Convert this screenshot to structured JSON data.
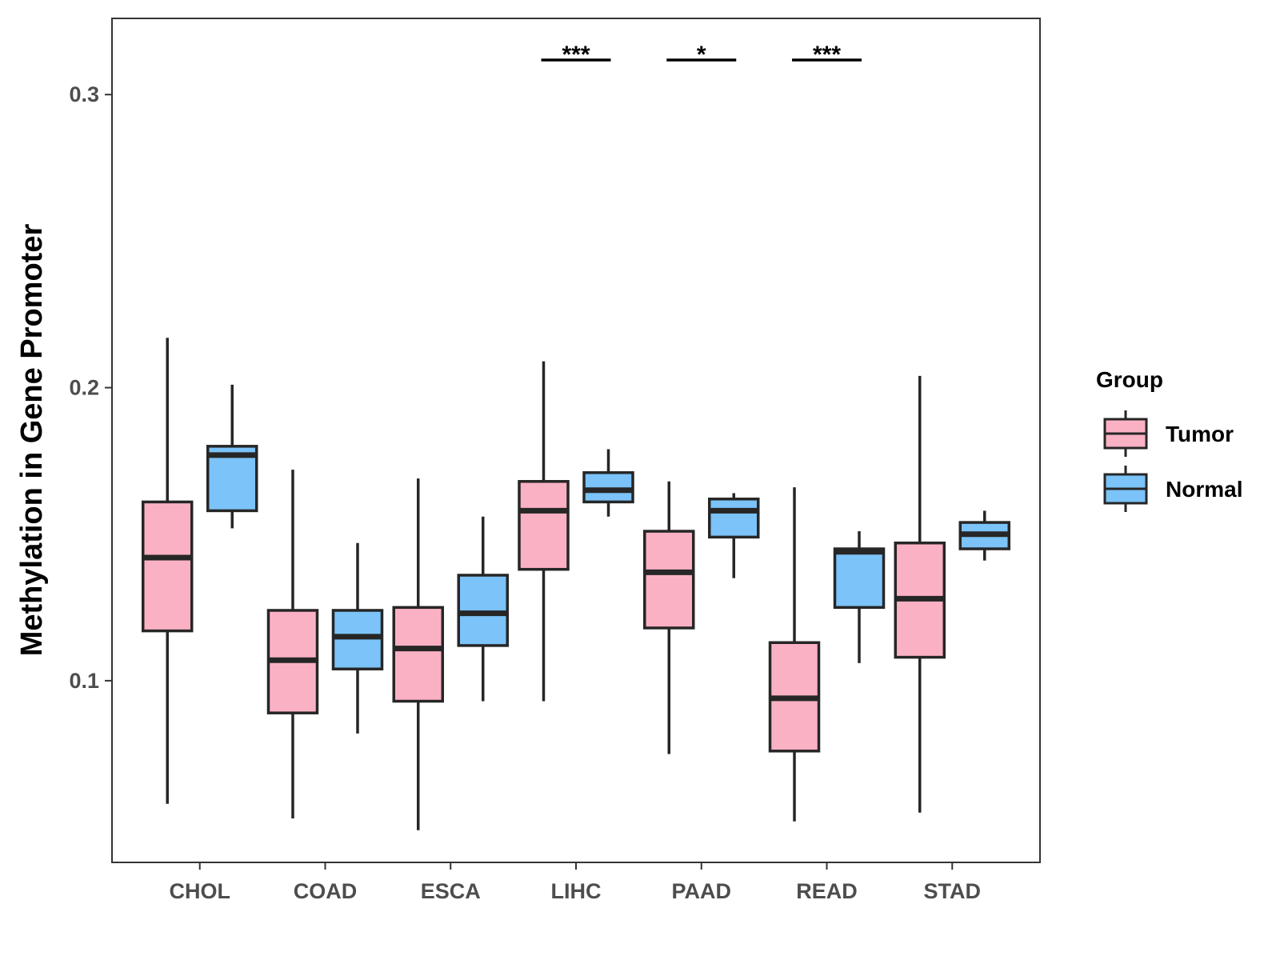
{
  "chart_data": {
    "type": "boxplot",
    "title": "",
    "xlabel": "",
    "ylabel": "Methylation in Gene Promoter",
    "ylim": [
      0.038,
      0.326
    ],
    "yticks": [
      0.1,
      0.2,
      0.3
    ],
    "ytick_labels": [
      "0.1",
      "0.2",
      "0.3"
    ],
    "categories": [
      "CHOL",
      "COAD",
      "ESCA",
      "LIHC",
      "PAAD",
      "READ",
      "STAD"
    ],
    "legend": {
      "title": "Group",
      "position": "right",
      "entries": [
        {
          "name": "Tumor",
          "color": "#FBB1C4"
        },
        {
          "name": "Normal",
          "color": "#7BC3F8"
        }
      ]
    },
    "series": [
      {
        "name": "Tumor",
        "color": "#FBB1C4",
        "boxes": [
          {
            "category": "CHOL",
            "min": 0.058,
            "q1": 0.117,
            "median": 0.142,
            "q3": 0.161,
            "max": 0.217
          },
          {
            "category": "COAD",
            "min": 0.053,
            "q1": 0.089,
            "median": 0.107,
            "q3": 0.124,
            "max": 0.172
          },
          {
            "category": "ESCA",
            "min": 0.049,
            "q1": 0.093,
            "median": 0.111,
            "q3": 0.125,
            "max": 0.169
          },
          {
            "category": "LIHC",
            "min": 0.093,
            "q1": 0.138,
            "median": 0.158,
            "q3": 0.168,
            "max": 0.209
          },
          {
            "category": "PAAD",
            "min": 0.075,
            "q1": 0.118,
            "median": 0.137,
            "q3": 0.151,
            "max": 0.168
          },
          {
            "category": "READ",
            "min": 0.052,
            "q1": 0.076,
            "median": 0.094,
            "q3": 0.113,
            "max": 0.166
          },
          {
            "category": "STAD",
            "min": 0.055,
            "q1": 0.108,
            "median": 0.128,
            "q3": 0.147,
            "max": 0.204
          }
        ]
      },
      {
        "name": "Normal",
        "color": "#7BC3F8",
        "boxes": [
          {
            "category": "CHOL",
            "min": 0.152,
            "q1": 0.158,
            "median": 0.177,
            "q3": 0.18,
            "max": 0.201
          },
          {
            "category": "COAD",
            "min": 0.082,
            "q1": 0.104,
            "median": 0.115,
            "q3": 0.124,
            "max": 0.147
          },
          {
            "category": "ESCA",
            "min": 0.093,
            "q1": 0.112,
            "median": 0.123,
            "q3": 0.136,
            "max": 0.156
          },
          {
            "category": "LIHC",
            "min": 0.156,
            "q1": 0.161,
            "median": 0.165,
            "q3": 0.171,
            "max": 0.179
          },
          {
            "category": "PAAD",
            "min": 0.135,
            "q1": 0.149,
            "median": 0.158,
            "q3": 0.162,
            "max": 0.164
          },
          {
            "category": "READ",
            "min": 0.106,
            "q1": 0.125,
            "median": 0.144,
            "q3": 0.145,
            "max": 0.151
          },
          {
            "category": "STAD",
            "min": 0.141,
            "q1": 0.145,
            "median": 0.15,
            "q3": 0.154,
            "max": 0.158
          }
        ]
      }
    ],
    "significance": [
      {
        "category": "LIHC",
        "label": "***"
      },
      {
        "category": "PAAD",
        "label": "*"
      },
      {
        "category": "READ",
        "label": "***"
      }
    ],
    "grid": false
  }
}
